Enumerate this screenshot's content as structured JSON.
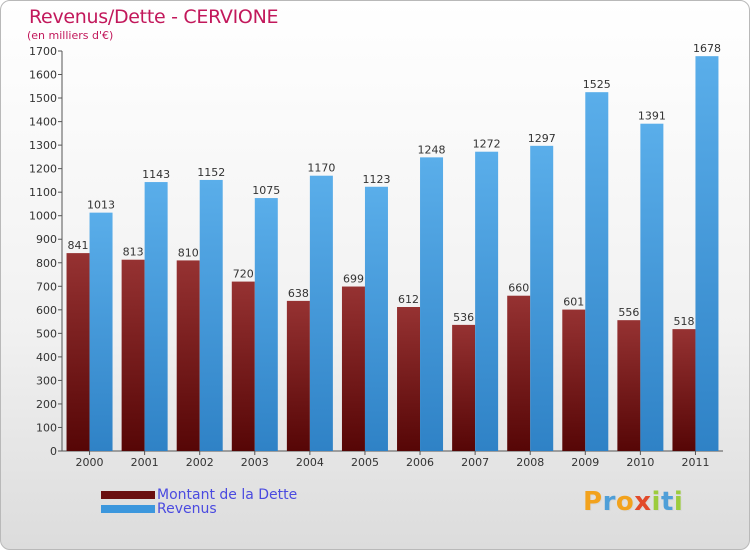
{
  "title": "Revenus/Dette - CERVIONE",
  "subtitle": "(en milliers d'€)",
  "logo": {
    "text": "Proxiti",
    "letters": [
      "P",
      "r",
      "o",
      "x",
      "i",
      "t",
      "i"
    ],
    "colors": [
      "#f2a21d",
      "#4f9fd8",
      "#f2a21d",
      "#e24a2a",
      "#9ccc3c",
      "#4f9fd8",
      "#9ccc3c"
    ]
  },
  "legend": [
    {
      "label": "Montant de la Dette",
      "color": "#6a0f10"
    },
    {
      "label": "Revenus",
      "color": "#3c97dd"
    }
  ],
  "chart_data": {
    "type": "bar",
    "categories": [
      "2000",
      "2001",
      "2002",
      "2003",
      "2004",
      "2005",
      "2006",
      "2007",
      "2008",
      "2009",
      "2010",
      "2011"
    ],
    "series": [
      {
        "name": "Montant de la Dette",
        "color": "#6a0f10",
        "values": [
          841,
          813,
          810,
          720,
          638,
          699,
          612,
          536,
          660,
          601,
          556,
          518
        ]
      },
      {
        "name": "Revenus",
        "color": "#3c97dd",
        "values": [
          1013,
          1143,
          1152,
          1075,
          1170,
          1123,
          1248,
          1272,
          1297,
          1525,
          1391,
          1678
        ]
      }
    ],
    "ylim": [
      0,
      1700
    ],
    "yticks": [
      0,
      100,
      200,
      300,
      400,
      500,
      600,
      700,
      800,
      900,
      1000,
      1100,
      1200,
      1300,
      1400,
      1500,
      1600,
      1700
    ],
    "grid": false,
    "legend_position": "bottom-left"
  }
}
